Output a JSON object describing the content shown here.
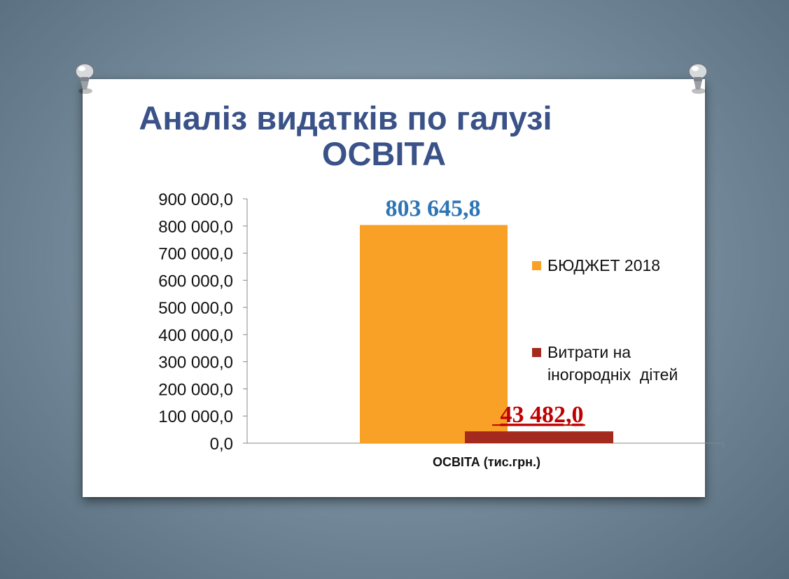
{
  "title": {
    "line1": "Аналіз видатків по галузі",
    "line2": "ОСВІТА"
  },
  "chart_data": {
    "type": "bar",
    "xlabel": "ОСВІТА (тис.грн.)",
    "ylabel": "",
    "ylim": [
      0,
      900000
    ],
    "y_tick_labels": [
      "0,0",
      "100 000,0",
      "200 000,0",
      "300 000,0",
      "400 000,0",
      "500 000,0",
      "600 000,0",
      "700 000,0",
      "800 000,0",
      "900 000,0"
    ],
    "categories": [
      "ОСВІТА (тис.грн.)"
    ],
    "series": [
      {
        "name": "БЮДЖЕТ 2018",
        "values": [
          803645.8
        ],
        "value_label": "803 645,8",
        "color": "#f9a127",
        "label_color": "#2e75b6"
      },
      {
        "name": "Витрати на іногородніх  дітей",
        "values": [
          43482.0
        ],
        "value_label": "43 482,0",
        "color": "#a52a1e",
        "label_color": "#c00000"
      }
    ],
    "grid": false,
    "legend_position": "right"
  },
  "legend": {
    "item1": "БЮДЖЕТ 2018",
    "item2_line1": "Витрати на",
    "item2_line2": "іногородніх  дітей"
  }
}
